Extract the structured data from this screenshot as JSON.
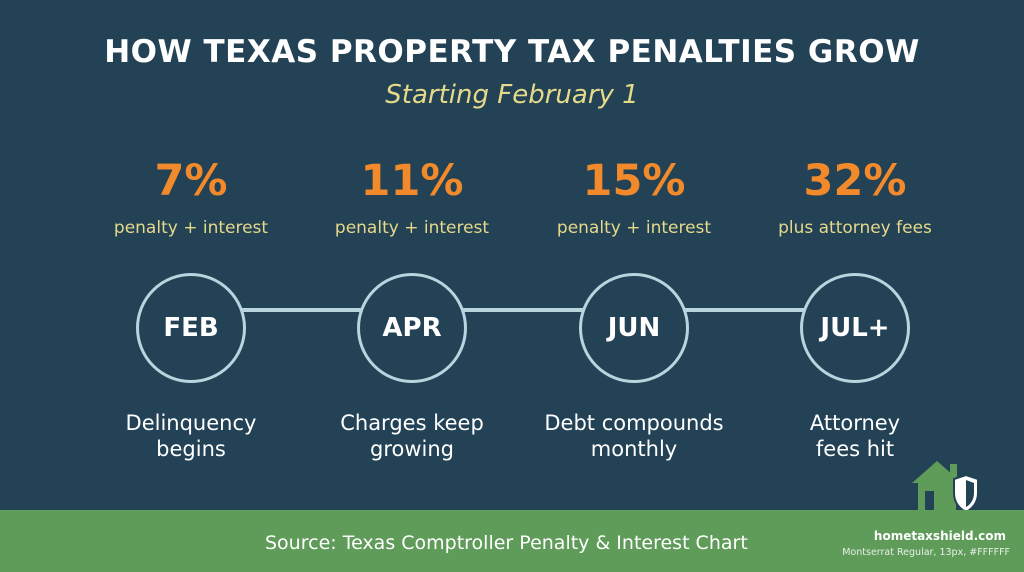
{
  "title": "HOW TEXAS PROPERTY TAX PENALTIES GROW",
  "subtitle": "Starting February 1",
  "steps": [
    {
      "percent": "7%",
      "percent_note": "penalty + interest",
      "month": "FEB",
      "description": "Delinquency\nbegins"
    },
    {
      "percent": "11%",
      "percent_note": "penalty + interest",
      "month": "APR",
      "description": "Charges keep\ngrowing"
    },
    {
      "percent": "15%",
      "percent_note": "penalty + interest",
      "month": "JUN",
      "description": "Debt compounds\nmonthly"
    },
    {
      "percent": "32%",
      "percent_note": "plus attorney fees",
      "month": "JUL+",
      "description": "Attorney\nfees hit"
    }
  ],
  "footer": {
    "source": "Source: Texas Comptroller Penalty & Interest Chart",
    "site": "hometaxshield.com",
    "note": "Montserrat Regular, 13px, #FFFFFF"
  },
  "colors": {
    "background": "#234255",
    "accent_percent": "#f28a2b",
    "accent_text": "#e5d98a",
    "circle_stroke": "#b8d4de",
    "footer": "#5f9b59"
  },
  "icons": [
    "house-icon",
    "shield-icon"
  ]
}
